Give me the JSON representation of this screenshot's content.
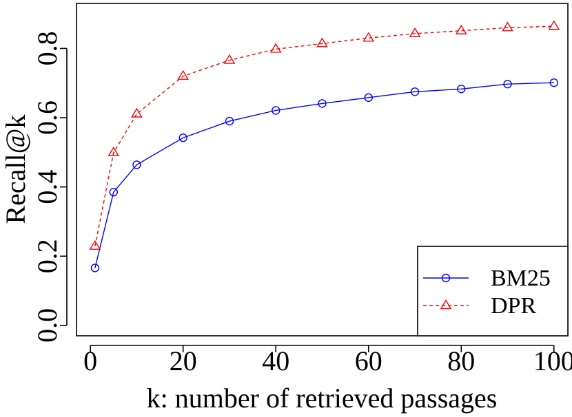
{
  "chart_data": {
    "type": "line",
    "title": "",
    "xlabel": "k: number of retrieved passages",
    "ylabel": "Recall@k",
    "xlim": [
      -3,
      103
    ],
    "ylim": [
      -0.03,
      0.93
    ],
    "xticks": [
      0,
      20,
      40,
      60,
      80,
      100
    ],
    "yticks": [
      0.0,
      0.2,
      0.4,
      0.6,
      0.8
    ],
    "xtick_labels": [
      "0",
      "20",
      "40",
      "60",
      "80",
      "100"
    ],
    "ytick_labels": [
      "0.0",
      "0.2",
      "0.4",
      "0.6",
      "0.8"
    ],
    "grid": false,
    "legend_position": "bottom-right",
    "x": [
      1,
      5,
      10,
      20,
      30,
      40,
      50,
      60,
      70,
      80,
      90,
      100
    ],
    "series": [
      {
        "name": "BM25",
        "values": [
          0.166,
          0.385,
          0.464,
          0.542,
          0.59,
          0.621,
          0.641,
          0.658,
          0.675,
          0.683,
          0.697,
          0.701
        ],
        "color": "#0000ff",
        "line": "solid",
        "marker": "circle"
      },
      {
        "name": "DPR",
        "values": [
          0.229,
          0.499,
          0.611,
          0.72,
          0.766,
          0.798,
          0.814,
          0.83,
          0.843,
          0.851,
          0.86,
          0.864
        ],
        "color": "#ff0000",
        "line": "dashed",
        "marker": "triangle"
      }
    ]
  }
}
